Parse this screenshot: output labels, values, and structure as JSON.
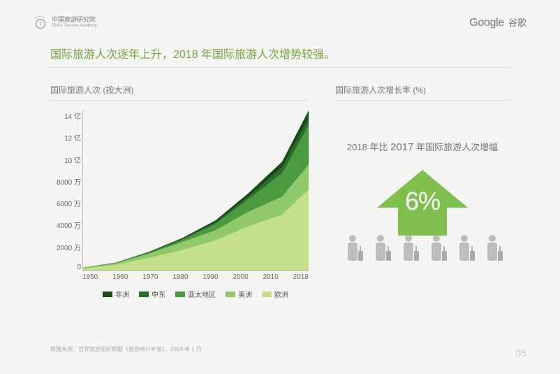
{
  "header": {
    "org_name": "中国旅游研究院",
    "org_en": "China Tourism Academy",
    "google": "Google",
    "google_cn": "谷歌"
  },
  "headline": "国际旅游人次逐年上升，2018 年国际旅游人次增势较强。",
  "left": {
    "subtitle": "国际旅游人次 (按大洲)",
    "y_ticks": [
      "14 亿",
      "12 亿",
      "10 亿",
      "8000 万",
      "6000 万",
      "4000 万",
      "2000 万",
      "0"
    ],
    "x_ticks": [
      "1950",
      "1960",
      "1970",
      "1980",
      "1990",
      "2000",
      "2010",
      "2018"
    ],
    "legend": [
      {
        "label": "非洲",
        "color": "#1a4a1a"
      },
      {
        "label": "中东",
        "color": "#2d6b2d"
      },
      {
        "label": "亚太地区",
        "color": "#4a9a3f"
      },
      {
        "label": "美洲",
        "color": "#8fc96b"
      },
      {
        "label": "欧洲",
        "color": "#c4e08a"
      }
    ],
    "series_colors": {
      "total": "#1a4a1a",
      "minus_af": "#2d6b2d",
      "minus_me": "#4a9a3f",
      "minus_ap": "#8fc96b",
      "europe": "#c4e08a"
    },
    "stacks_norm": {
      "x": [
        0,
        0.147,
        0.294,
        0.441,
        0.588,
        0.735,
        0.882,
        1.0
      ],
      "total": [
        0.018,
        0.05,
        0.118,
        0.204,
        0.314,
        0.486,
        0.679,
        1.0
      ],
      "minus_af": [
        0.018,
        0.049,
        0.115,
        0.199,
        0.303,
        0.466,
        0.647,
        0.952
      ],
      "minus_me": [
        0.017,
        0.048,
        0.112,
        0.193,
        0.293,
        0.449,
        0.608,
        0.909
      ],
      "minus_ap": [
        0.017,
        0.047,
        0.107,
        0.179,
        0.252,
        0.369,
        0.462,
        0.662
      ],
      "europe": [
        0.012,
        0.036,
        0.081,
        0.129,
        0.189,
        0.279,
        0.348,
        0.507
      ]
    }
  },
  "right": {
    "subtitle": "国际旅游人次增长率 (%)",
    "caption_pre": "2018 年比 ",
    "caption_year": "2017",
    "caption_post": " 年国际旅游人次增幅",
    "arrow_value": "6%",
    "arrow_color": "#7fbf4d",
    "people_color": "#bdbdbc",
    "luggage_color": "#aaaaa9"
  },
  "source": "数据来源：世界旅游组织根据《旅游统计年鉴》，2019 年 1 月",
  "page": "05"
}
